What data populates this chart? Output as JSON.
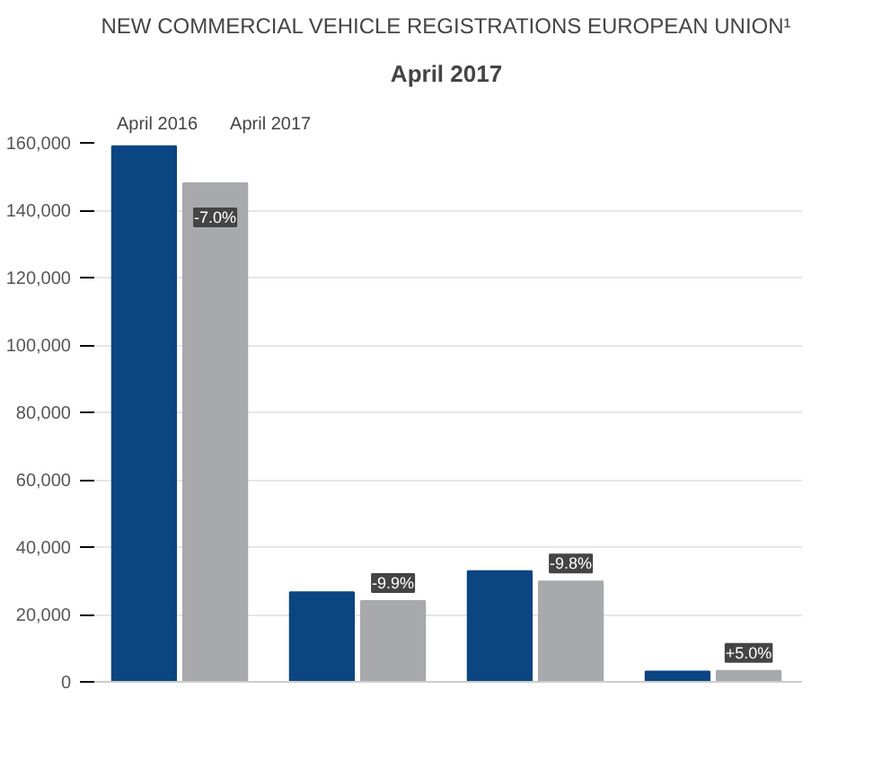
{
  "chart_data": {
    "type": "bar",
    "title": "NEW COMMERCIAL VEHICLE REGISTRATIONS EUROPEAN UNION¹",
    "subtitle": "April 2017",
    "categories": [
      null,
      null,
      null,
      null
    ],
    "series": [
      {
        "name": "April 2016",
        "color": "#0b4582",
        "values": [
          159000,
          26600,
          32900,
          3100
        ]
      },
      {
        "name": "April 2017",
        "color": "#a7a9ac",
        "values": [
          148000,
          24000,
          29800,
          3300
        ]
      }
    ],
    "annotations": [
      {
        "text": "-7.0%",
        "y": 148000
      },
      {
        "text": "-9.9%",
        "y": 24000
      },
      {
        "text": "-9.8%",
        "y": 29800
      },
      {
        "text": "+5.0%",
        "y": 3300
      }
    ],
    "ylim": [
      0,
      160000
    ],
    "yticks": [
      {
        "value": 0,
        "label": "0"
      },
      {
        "value": 20000,
        "label": "20,000"
      },
      {
        "value": 40000,
        "label": "40,000"
      },
      {
        "value": 60000,
        "label": "60,000"
      },
      {
        "value": 80000,
        "label": "80,000"
      },
      {
        "value": 100000,
        "label": "100,000"
      },
      {
        "value": 120000,
        "label": "120,000"
      },
      {
        "value": 140000,
        "label": "140,000"
      },
      {
        "value": 160000,
        "label": "160,000"
      }
    ],
    "grid": "y",
    "legend": "top left"
  }
}
